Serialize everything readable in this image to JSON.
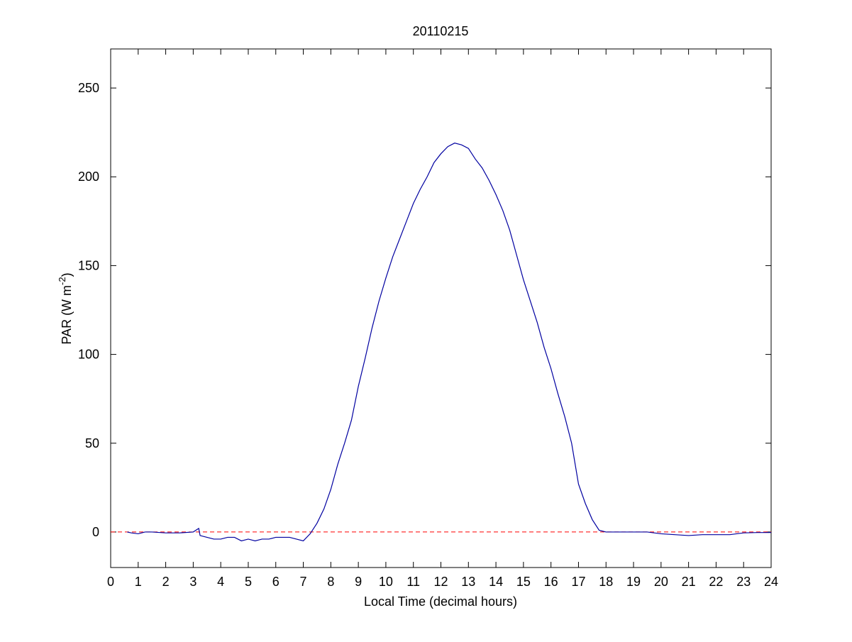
{
  "chart_data": {
    "type": "line",
    "title": "20110215",
    "xlabel": "Local Time (decimal hours)",
    "ylabel": {
      "text": "PAR (W m",
      "superscript": "-2",
      "suffix": ")"
    },
    "xlim": [
      0,
      24
    ],
    "xticks": [
      0,
      1,
      2,
      3,
      4,
      5,
      6,
      7,
      8,
      9,
      10,
      11,
      12,
      13,
      14,
      15,
      16,
      17,
      18,
      19,
      20,
      21,
      22,
      23,
      24
    ],
    "ylim": [
      -20,
      272
    ],
    "yticks": [
      0,
      50,
      100,
      150,
      200,
      250
    ],
    "reference_line": {
      "y": 0,
      "color": "#ff0000",
      "style": "dashed"
    },
    "series": [
      {
        "color": "#0000a0",
        "x": [
          0.6,
          0.75,
          1,
          1.25,
          1.5,
          2,
          2.5,
          3,
          3.2,
          3.25,
          3.5,
          3.75,
          4,
          4.25,
          4.5,
          4.75,
          5,
          5.25,
          5.5,
          5.75,
          6,
          6.25,
          6.5,
          6.75,
          7,
          7.25,
          7.5,
          7.75,
          8,
          8.25,
          8.5,
          8.75,
          9,
          9.25,
          9.5,
          9.75,
          10,
          10.25,
          10.5,
          10.75,
          11,
          11.25,
          11.5,
          11.75,
          12,
          12.25,
          12.5,
          12.75,
          13,
          13.25,
          13.5,
          13.75,
          14,
          14.25,
          14.5,
          14.75,
          15,
          15.25,
          15.5,
          15.75,
          16,
          16.25,
          16.5,
          16.75,
          17,
          17.25,
          17.5,
          17.75,
          18,
          18.5,
          19,
          19.5,
          20,
          20.5,
          21,
          21.5,
          22,
          22.5,
          23,
          23.5,
          24
        ],
        "values": [
          0,
          -0.5,
          -1,
          0,
          0,
          -0.5,
          -0.5,
          0,
          2,
          -2,
          -3,
          -4,
          -4,
          -3,
          -3,
          -5,
          -4,
          -5,
          -4,
          -4,
          -3,
          -3,
          -3,
          -4,
          -5,
          -1,
          5,
          13,
          24,
          38,
          50,
          63,
          82,
          98,
          115,
          130,
          143,
          155,
          165,
          175,
          185,
          193,
          200,
          208,
          213,
          217,
          219,
          218,
          216,
          210,
          205,
          198,
          190,
          181,
          170,
          156,
          142,
          130,
          118,
          104,
          92,
          78,
          65,
          50,
          27,
          16,
          7,
          1,
          0,
          0,
          0,
          0,
          -1,
          -1.5,
          -2,
          -1.5,
          -1.5,
          -1.5,
          -0.5,
          -0.3,
          -0.3
        ]
      }
    ]
  }
}
